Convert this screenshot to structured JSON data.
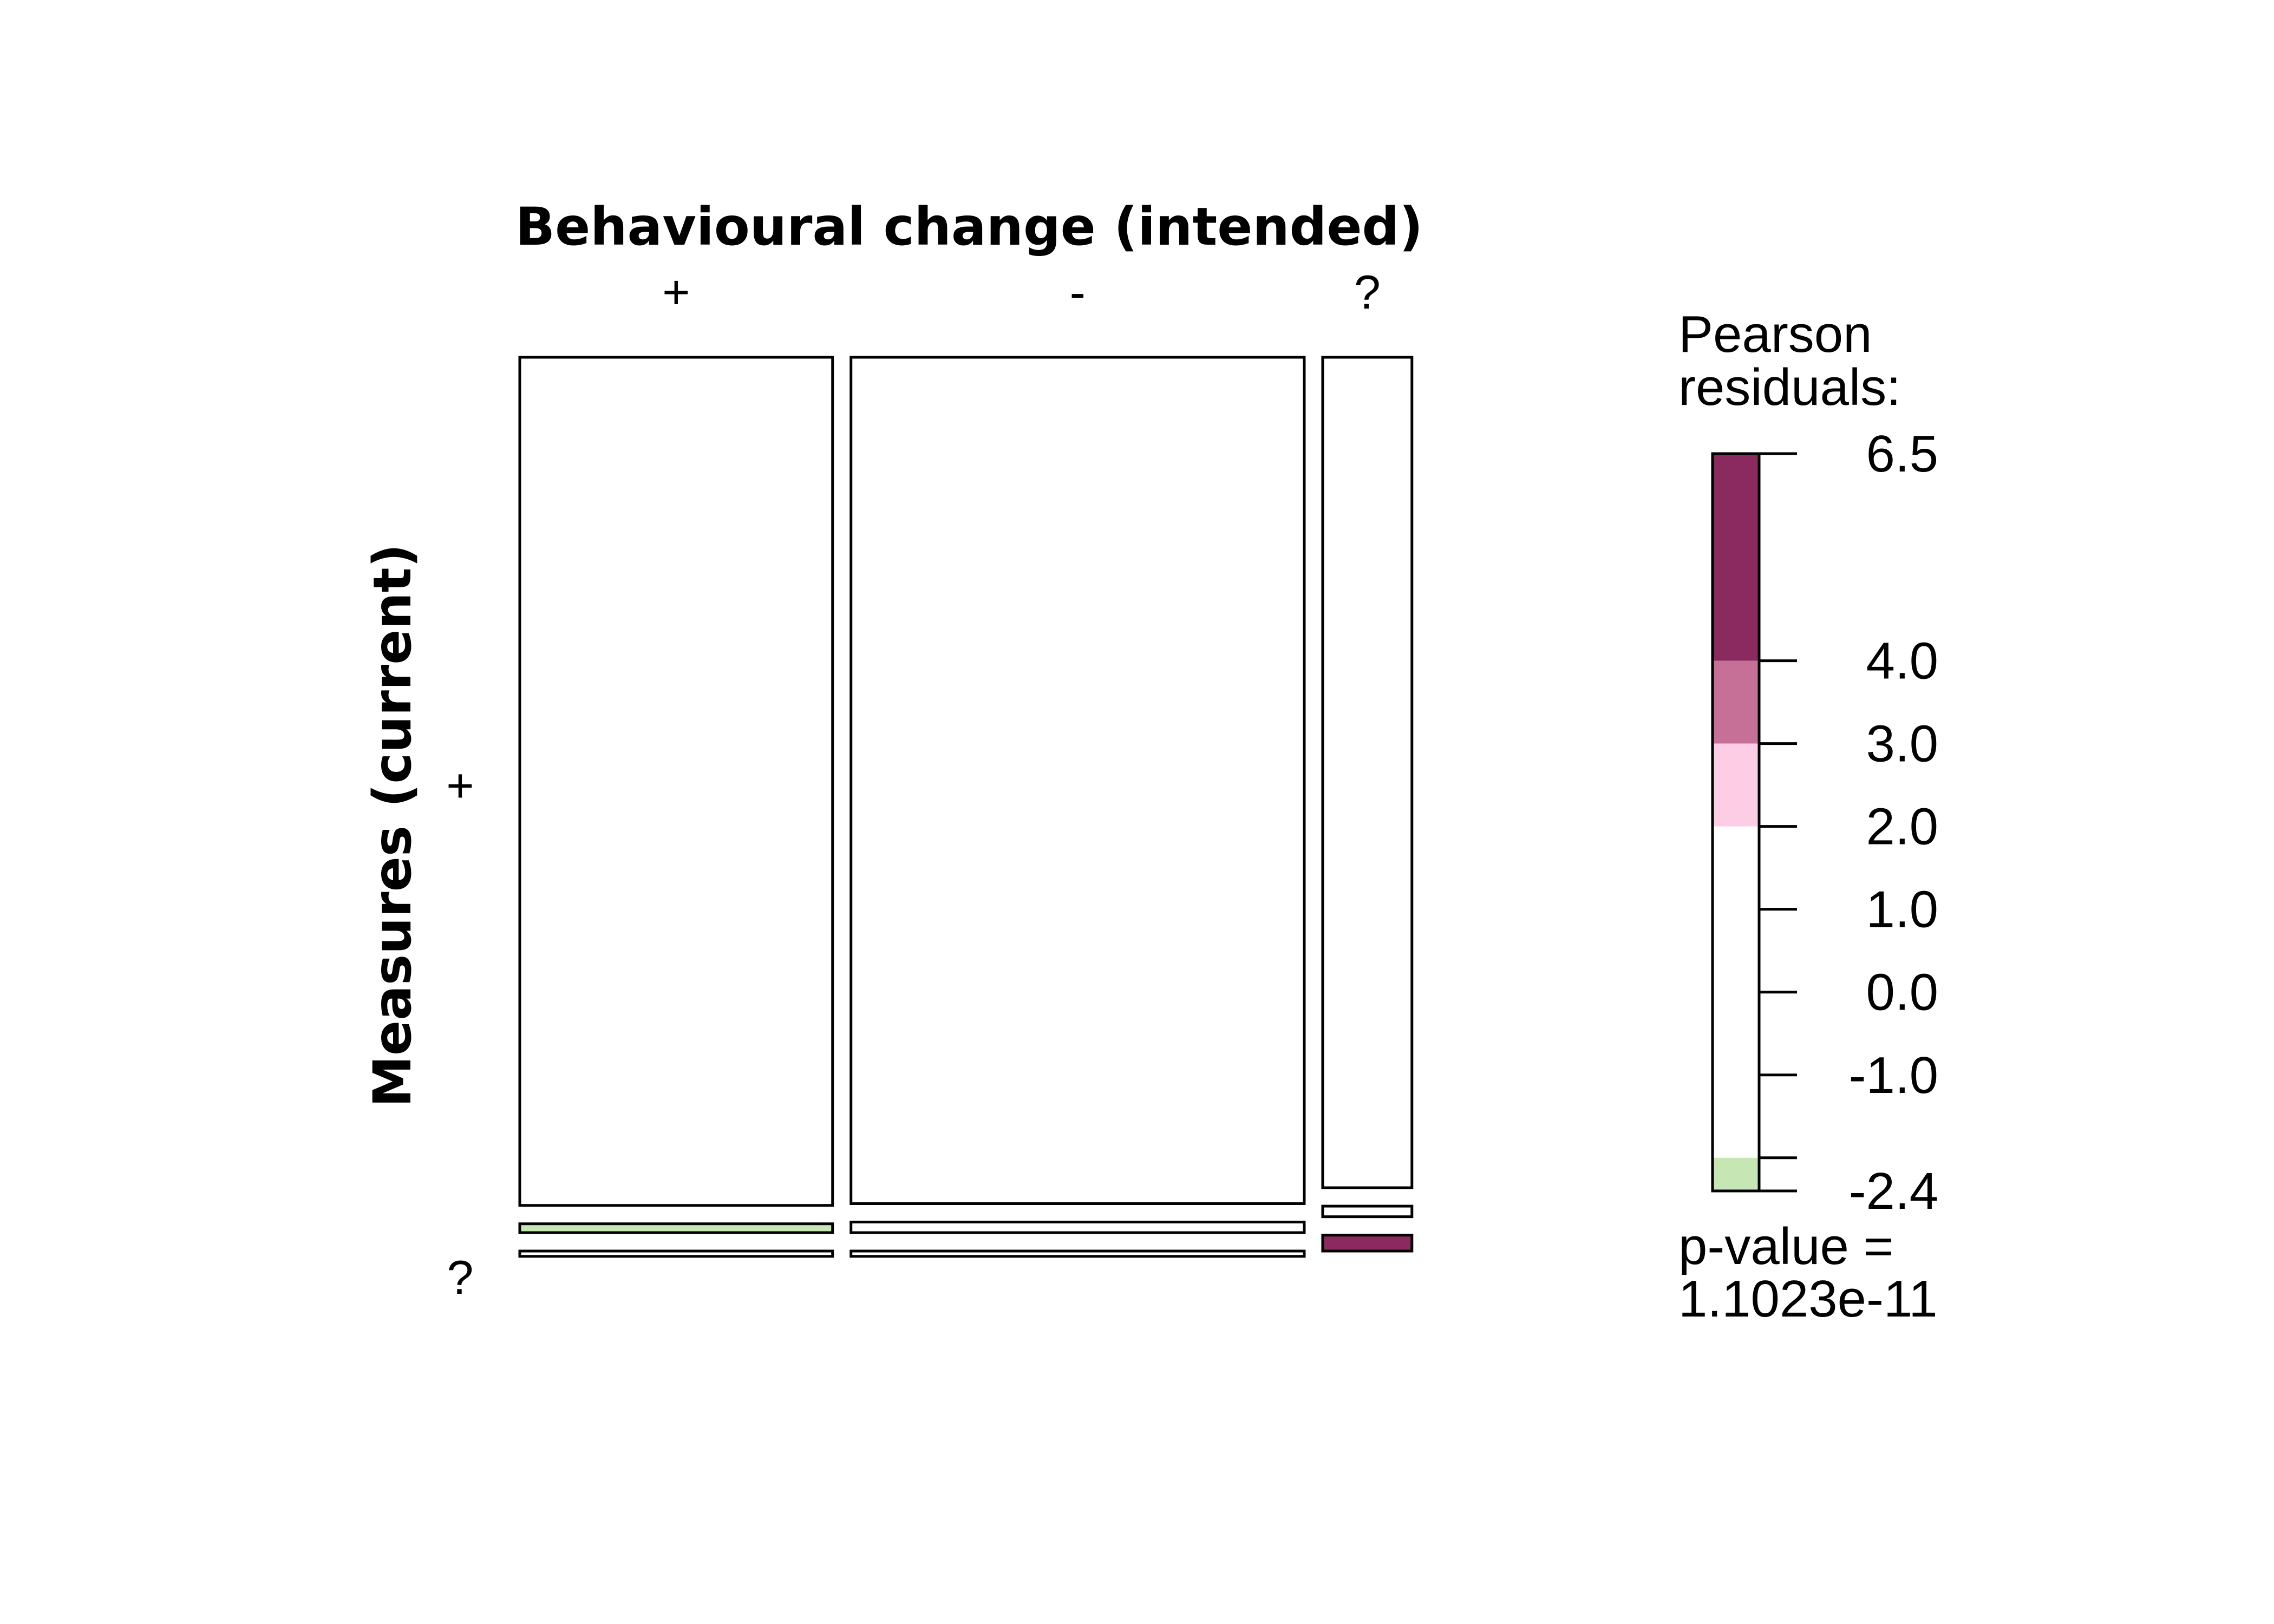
{
  "chart_data": {
    "type": "mosaic",
    "x_title": "Behavioural change (intended)",
    "y_title": "Measures (current)",
    "x_categories": [
      "+",
      "-",
      "?"
    ],
    "y_tick_labels": [
      "+",
      "?"
    ],
    "columns": [
      {
        "category": "+",
        "width_fraction": 0.354,
        "cells": [
          {
            "height_fraction": 0.96,
            "residual": 0.0
          },
          {
            "height_fraction": 0.01,
            "residual": -2.4
          },
          {
            "height_fraction": 0.006,
            "residual": -1.5
          }
        ]
      },
      {
        "category": "-",
        "width_fraction": 0.513,
        "cells": [
          {
            "height_fraction": 0.958,
            "residual": 0.0
          },
          {
            "height_fraction": 0.012,
            "residual": 0.0
          },
          {
            "height_fraction": 0.006,
            "residual": 0.0
          }
        ]
      },
      {
        "category": "?",
        "width_fraction": 0.101,
        "cells": [
          {
            "height_fraction": 0.94,
            "residual": 0.0
          },
          {
            "height_fraction": 0.012,
            "residual": 0.0
          },
          {
            "height_fraction": 0.018,
            "residual": 6.5
          }
        ]
      }
    ],
    "legend": {
      "title_line1": "Pearson",
      "title_line2": "residuals:",
      "ticks": [
        {
          "value": 6.5,
          "label": "6.5"
        },
        {
          "value": 4.0,
          "label": "4.0"
        },
        {
          "value": 3.0,
          "label": "3.0"
        },
        {
          "value": 2.0,
          "label": "2.0"
        },
        {
          "value": 1.0,
          "label": "1.0"
        },
        {
          "value": 0.0,
          "label": "0.0"
        },
        {
          "value": -1.0,
          "label": "-1.0"
        },
        {
          "value": -2.0,
          "label": ""
        },
        {
          "value": -2.4,
          "label": "-2.4"
        }
      ],
      "bands": [
        {
          "from": 4.0,
          "to": 6.5,
          "color": "#8B2A5E"
        },
        {
          "from": 3.0,
          "to": 4.0,
          "color": "#C77097"
        },
        {
          "from": 2.0,
          "to": 3.0,
          "color": "#FDCDE6"
        },
        {
          "from": -2.0,
          "to": 2.0,
          "color": "#FFFFFF"
        },
        {
          "from": -2.4,
          "to": -2.0,
          "color": "#C6E6B4"
        }
      ],
      "range": [
        -2.4,
        6.5
      ],
      "pvalue_line1": "p-value =",
      "pvalue_line2": "1.1023e-11"
    },
    "colors": {
      "strong_positive": "#8B2A5E",
      "medium_positive": "#C77097",
      "weak_positive": "#FDCDE6",
      "neutral": "#FFFFFF",
      "weak_negative": "#C6E6B4",
      "outline": "#000000"
    }
  }
}
